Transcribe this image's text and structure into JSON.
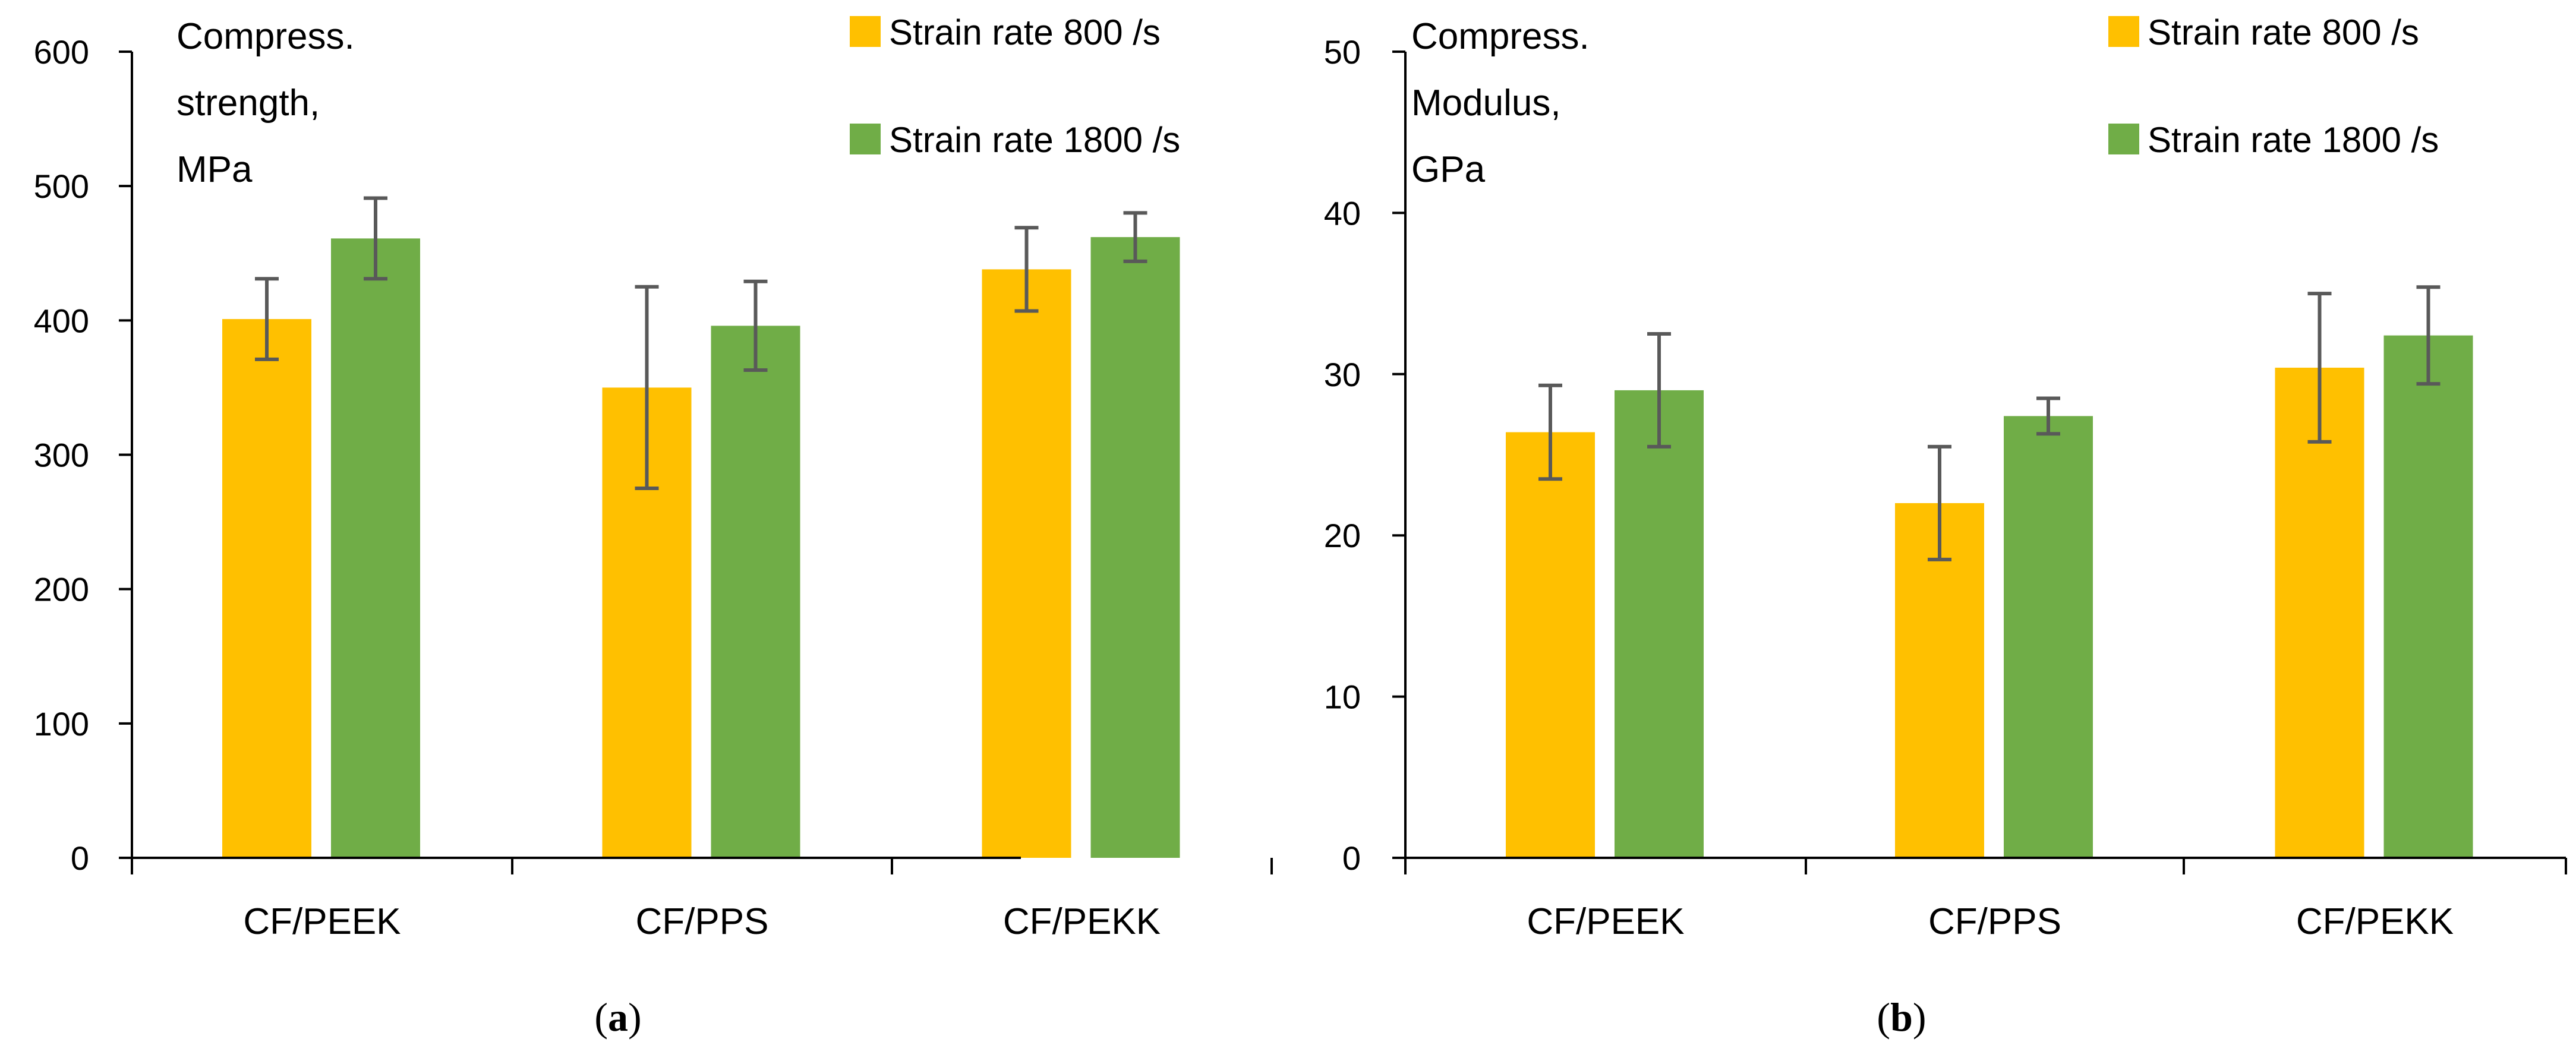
{
  "chart_data": [
    {
      "type": "bar",
      "title": "",
      "subfigure_label": "(a)",
      "annotation_lines": [
        "Compress.",
        "strength,",
        "MPa"
      ],
      "categories": [
        "CF/PEEK",
        "CF/PPS",
        "CF/PEKK"
      ],
      "ylim": [
        0,
        600
      ],
      "yticks": [
        0,
        100,
        200,
        300,
        400,
        500,
        600
      ],
      "xlabel": "",
      "ylabel": "",
      "grid": false,
      "legend_position": "top-right",
      "series": [
        {
          "name": "Strain rate 800 /s",
          "color": "#FFC000",
          "values": [
            401,
            350,
            438
          ],
          "errors": [
            30,
            75,
            31
          ]
        },
        {
          "name": "Strain rate 1800 /s",
          "color": "#70AD47",
          "values": [
            461,
            396,
            462
          ],
          "errors": [
            30,
            33,
            18
          ]
        }
      ]
    },
    {
      "type": "bar",
      "title": "",
      "subfigure_label": "(b)",
      "annotation_lines": [
        "Compress.",
        "Modulus,",
        "GPa"
      ],
      "categories": [
        "CF/PEEK",
        "CF/PPS",
        "CF/PEKK"
      ],
      "ylim": [
        0,
        50
      ],
      "yticks": [
        0,
        10,
        20,
        30,
        40,
        50
      ],
      "xlabel": "",
      "ylabel": "",
      "grid": false,
      "legend_position": "top-right",
      "series": [
        {
          "name": "Strain rate 800 /s",
          "color": "#FFC000",
          "values": [
            26.4,
            22.0,
            30.4
          ],
          "errors": [
            2.9,
            3.5,
            4.6
          ]
        },
        {
          "name": "Strain rate 1800 /s",
          "color": "#70AD47",
          "values": [
            29.0,
            27.4,
            32.4
          ],
          "errors": [
            3.5,
            1.1,
            3.0
          ]
        }
      ]
    }
  ],
  "style": {
    "axis_color": "#000000",
    "error_bar_color": "#595959"
  }
}
